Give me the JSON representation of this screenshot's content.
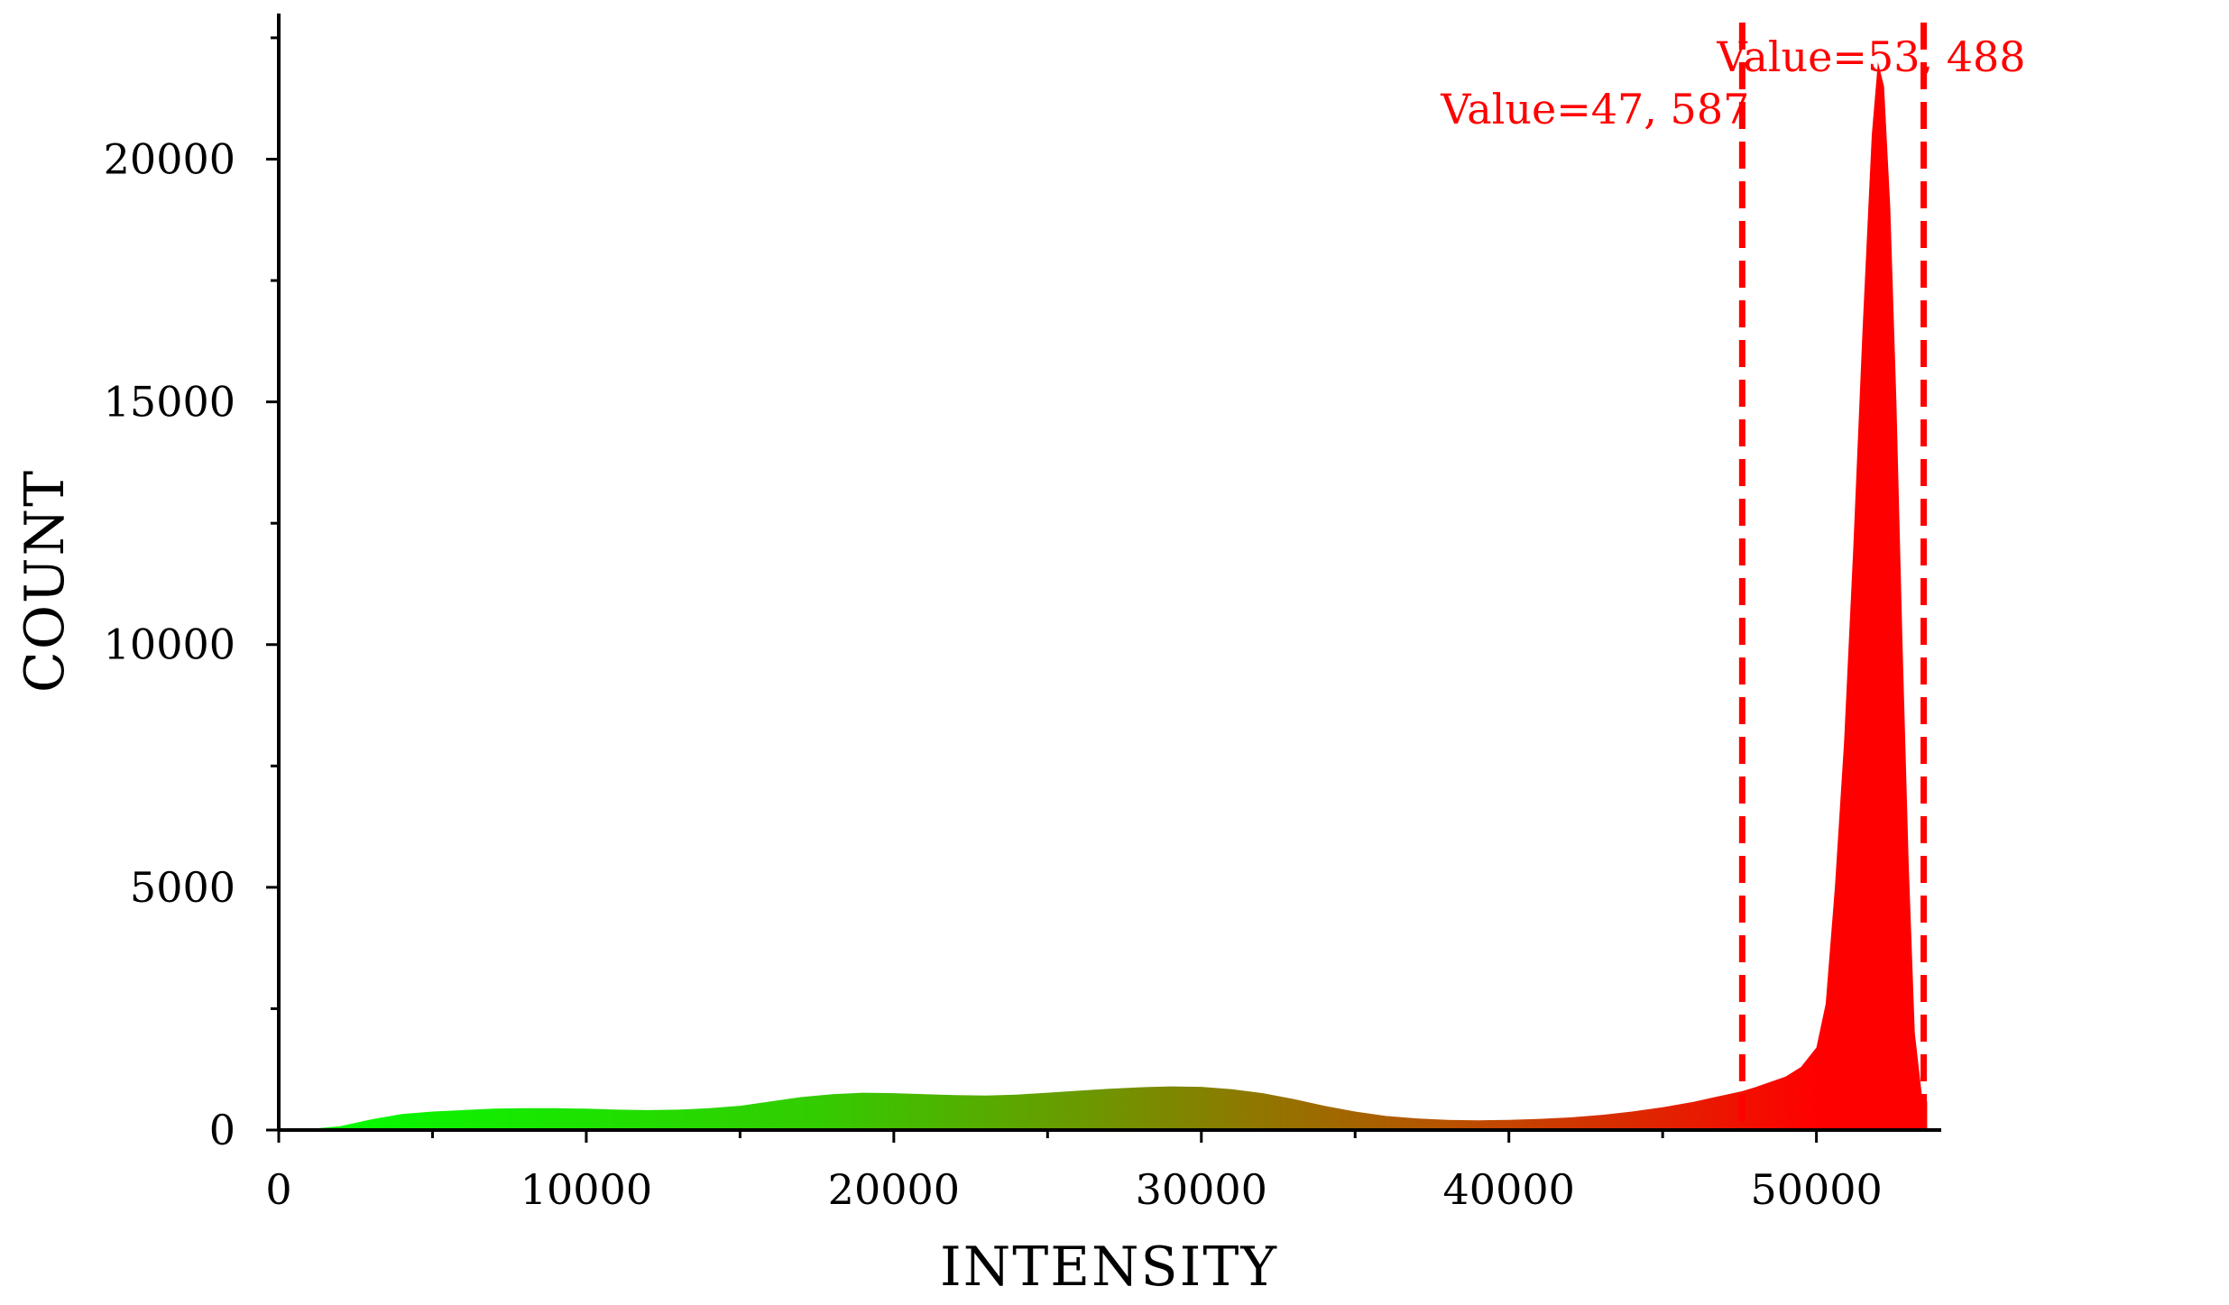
{
  "chart_data": {
    "type": "area",
    "xlabel": "INTENSITY",
    "ylabel": "COUNT",
    "xlim": [
      0,
      54000
    ],
    "ylim": [
      0,
      23000
    ],
    "x_ticks": [
      0,
      10000,
      20000,
      30000,
      40000,
      50000
    ],
    "x_tick_labels": [
      "0",
      "10000",
      "20000",
      "30000",
      "40000",
      "50000"
    ],
    "y_ticks": [
      0,
      5000,
      10000,
      15000,
      20000
    ],
    "y_tick_labels": [
      "0",
      "5000",
      "10000",
      "15000",
      "20000"
    ],
    "x_minor_step": 5000,
    "y_minor_step": 2500,
    "grid": false,
    "gradient_colors": [
      "#00ff00",
      "#ff0000"
    ],
    "series": [
      {
        "x": [
          1000,
          2000,
          3000,
          4000,
          5000,
          6000,
          7000,
          8000,
          9000,
          10000,
          11000,
          12000,
          13000,
          14000,
          15000,
          16000,
          17000,
          18000,
          19000,
          20000,
          21000,
          22000,
          23000,
          24000,
          25000,
          26000,
          27000,
          28000,
          29000,
          30000,
          31000,
          32000,
          33000,
          34000,
          35000,
          36000,
          37000,
          38000,
          39000,
          40000,
          41000,
          42000,
          43000,
          44000,
          45000,
          46000,
          47000,
          47587,
          48000,
          49000,
          49500,
          50000,
          50300,
          50600,
          50900,
          51200,
          51500,
          51800,
          52000,
          52200,
          52400,
          52600,
          52800,
          53000,
          53200,
          53488,
          53600
        ],
        "y": [
          20,
          80,
          220,
          330,
          380,
          410,
          440,
          450,
          450,
          440,
          420,
          410,
          420,
          450,
          500,
          590,
          680,
          740,
          770,
          760,
          740,
          720,
          710,
          730,
          770,
          810,
          850,
          880,
          900,
          890,
          840,
          760,
          640,
          500,
          380,
          290,
          240,
          210,
          200,
          210,
          230,
          260,
          310,
          380,
          470,
          580,
          720,
          800,
          880,
          1100,
          1300,
          1700,
          2600,
          5000,
          8000,
          12000,
          16500,
          20500,
          22000,
          21500,
          19000,
          15000,
          10000,
          5500,
          2000,
          400,
          600
        ]
      }
    ],
    "reference_lines": [
      {
        "x": 47587,
        "label": "Value=47, 587"
      },
      {
        "x": 53488,
        "label": "Value=53, 488"
      }
    ]
  }
}
